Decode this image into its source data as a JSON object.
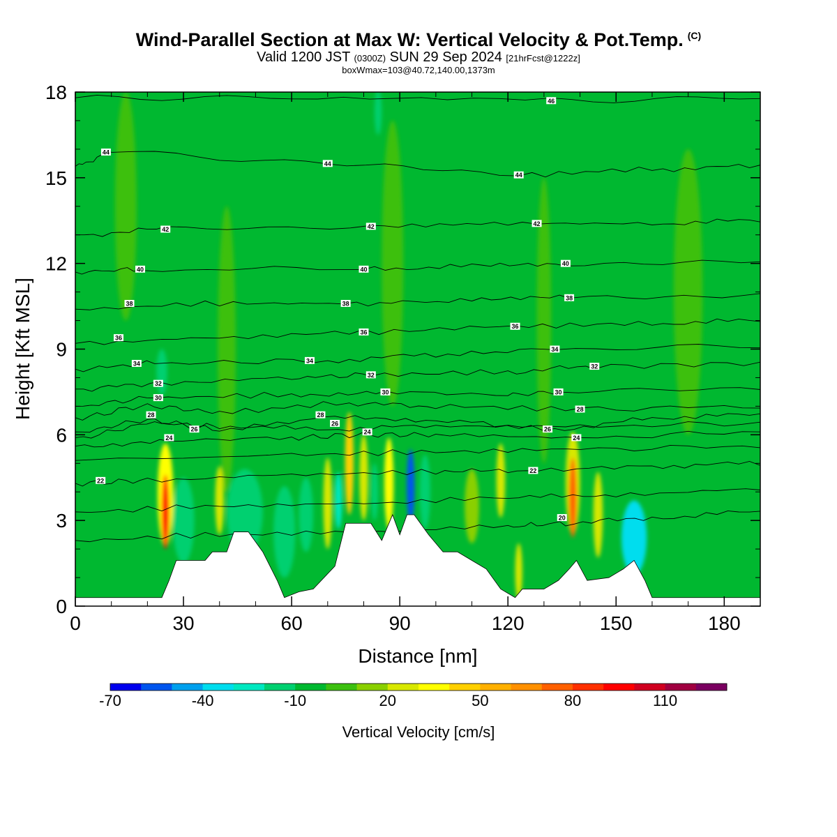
{
  "title": {
    "main": "Wind-Parallel Section at Max W: Vertical Velocity & Pot.Temp.",
    "copyright": "(C)",
    "valid_prefix": "Valid 1200 JST",
    "valid_utc": "(0300Z)",
    "valid_date": "SUN 29 Sep 2024",
    "forecast": "[21hrFcst@1222z]",
    "box_info": "boxWmax=103@40.72,140.00,1373m"
  },
  "chart_data": {
    "type": "heatmap",
    "xlabel": "Distance [nm]",
    "ylabel": "Height [Kft MSL]",
    "xlim": [
      0,
      190
    ],
    "ylim": [
      0,
      18
    ],
    "x_ticks": [
      0,
      30,
      60,
      90,
      120,
      150,
      180
    ],
    "y_ticks": [
      0,
      3,
      6,
      9,
      12,
      15,
      18
    ],
    "background_w": -5,
    "terrain_profile": [
      [
        0,
        0.3
      ],
      [
        24,
        0.3
      ],
      [
        26,
        0.9
      ],
      [
        28,
        1.6
      ],
      [
        36,
        1.6
      ],
      [
        38,
        1.9
      ],
      [
        42,
        1.9
      ],
      [
        44,
        2.6
      ],
      [
        48,
        2.6
      ],
      [
        52,
        1.9
      ],
      [
        56,
        0.9
      ],
      [
        58,
        0.3
      ],
      [
        62,
        0.5
      ],
      [
        66,
        0.6
      ],
      [
        72,
        1.4
      ],
      [
        75,
        2.9
      ],
      [
        82,
        2.9
      ],
      [
        85,
        2.3
      ],
      [
        88,
        3.2
      ],
      [
        90,
        2.5
      ],
      [
        92,
        3.2
      ],
      [
        94,
        3.2
      ],
      [
        98,
        2.5
      ],
      [
        102,
        1.9
      ],
      [
        106,
        1.9
      ],
      [
        110,
        1.6
      ],
      [
        114,
        1.3
      ],
      [
        118,
        0.6
      ],
      [
        122,
        0.3
      ],
      [
        124,
        0.6
      ],
      [
        130,
        0.6
      ],
      [
        134,
        0.9
      ],
      [
        137,
        1.3
      ],
      [
        139,
        1.6
      ],
      [
        142,
        0.9
      ],
      [
        148,
        1.0
      ],
      [
        152,
        1.3
      ],
      [
        155,
        1.6
      ],
      [
        158,
        0.9
      ],
      [
        160,
        0.3
      ],
      [
        190,
        0.3
      ]
    ],
    "w_cells": [
      {
        "x": 25,
        "y": 3.3,
        "sx": 1.0,
        "sy": 1.3,
        "w": 90
      },
      {
        "x": 25,
        "y": 3.9,
        "sx": 2.2,
        "sy": 1.8,
        "w": 30
      },
      {
        "x": 30,
        "y": 3.0,
        "sx": 3.0,
        "sy": 1.5,
        "w": -15
      },
      {
        "x": 40,
        "y": 3.7,
        "sx": 1.2,
        "sy": 1.2,
        "w": 25
      },
      {
        "x": 47,
        "y": 3.3,
        "sx": 5.0,
        "sy": 1.5,
        "w": -15
      },
      {
        "x": 58,
        "y": 2.6,
        "sx": 3.0,
        "sy": 1.6,
        "w": -18
      },
      {
        "x": 64,
        "y": 3.2,
        "sx": 2.0,
        "sy": 1.3,
        "w": -12
      },
      {
        "x": 70,
        "y": 3.6,
        "sx": 1.2,
        "sy": 1.6,
        "w": 25
      },
      {
        "x": 73,
        "y": 3.7,
        "sx": 1.0,
        "sy": 1.0,
        "w": -25
      },
      {
        "x": 76,
        "y": 5.0,
        "sx": 1.2,
        "sy": 1.8,
        "w": 40
      },
      {
        "x": 80,
        "y": 4.5,
        "sx": 1.2,
        "sy": 1.5,
        "w": 25
      },
      {
        "x": 83,
        "y": 4.0,
        "sx": 1.0,
        "sy": 1.0,
        "w": -20
      },
      {
        "x": 87,
        "y": 4.3,
        "sx": 1.3,
        "sy": 1.6,
        "w": 30
      },
      {
        "x": 93,
        "y": 4.2,
        "sx": 1.1,
        "sy": 1.3,
        "w": -55
      },
      {
        "x": 97,
        "y": 4.0,
        "sx": 1.5,
        "sy": 1.3,
        "w": -18
      },
      {
        "x": 110,
        "y": 3.5,
        "sx": 2.0,
        "sy": 1.3,
        "w": 15
      },
      {
        "x": 118,
        "y": 4.4,
        "sx": 1.2,
        "sy": 1.3,
        "w": 25
      },
      {
        "x": 123,
        "y": 1.2,
        "sx": 1.0,
        "sy": 1.0,
        "w": 25
      },
      {
        "x": 138,
        "y": 3.8,
        "sx": 1.0,
        "sy": 1.4,
        "w": 75
      },
      {
        "x": 138,
        "y": 4.3,
        "sx": 2.0,
        "sy": 1.8,
        "w": 25
      },
      {
        "x": 145,
        "y": 3.2,
        "sx": 1.3,
        "sy": 1.5,
        "w": 20
      },
      {
        "x": 155,
        "y": 2.4,
        "sx": 3.5,
        "sy": 1.3,
        "w": -40
      },
      {
        "x": 24,
        "y": 8.2,
        "sx": 1.5,
        "sy": 0.8,
        "w": -15
      },
      {
        "x": 42,
        "y": 9.0,
        "sx": 2.5,
        "sy": 5.0,
        "w": 5
      },
      {
        "x": 88,
        "y": 12.0,
        "sx": 3.0,
        "sy": 5.0,
        "w": 5
      },
      {
        "x": 130,
        "y": 10.0,
        "sx": 2.0,
        "sy": 5.0,
        "w": 5
      },
      {
        "x": 170,
        "y": 11.0,
        "sx": 4.0,
        "sy": 5.0,
        "w": 5
      },
      {
        "x": 14,
        "y": 14.0,
        "sx": 3.0,
        "sy": 4.0,
        "w": 5
      },
      {
        "x": 84,
        "y": 17.3,
        "sx": 1.0,
        "sy": 0.8,
        "w": -20
      }
    ],
    "theta_contours": [
      {
        "level": 20,
        "heights": [
          [
            0,
            2.3
          ],
          [
            40,
            2.5
          ],
          [
            80,
            2.6
          ],
          [
            120,
            2.8
          ],
          [
            136,
            2.9
          ],
          [
            160,
            3.1
          ],
          [
            190,
            3.3
          ]
        ]
      },
      {
        "level": 21,
        "heights": [
          [
            0,
            3.3
          ],
          [
            40,
            3.5
          ],
          [
            80,
            3.6
          ],
          [
            120,
            3.8
          ],
          [
            150,
            3.9
          ],
          [
            190,
            4.1
          ]
        ]
      },
      {
        "level": 22,
        "heights": [
          [
            0,
            4.3
          ],
          [
            20,
            4.4
          ],
          [
            60,
            4.6
          ],
          [
            100,
            4.7
          ],
          [
            125,
            4.75
          ],
          [
            160,
            4.9
          ],
          [
            190,
            5.0
          ]
        ]
      },
      {
        "level": 23,
        "heights": [
          [
            0,
            5.1
          ],
          [
            60,
            5.3
          ],
          [
            100,
            5.4
          ],
          [
            140,
            5.5
          ],
          [
            190,
            5.6
          ]
        ]
      },
      {
        "level": 24,
        "heights": [
          [
            0,
            5.6
          ],
          [
            26,
            5.8
          ],
          [
            60,
            5.9
          ],
          [
            80,
            6.0
          ],
          [
            100,
            6.0
          ],
          [
            140,
            5.9
          ],
          [
            190,
            6.1
          ]
        ]
      },
      {
        "level": 25,
        "heights": [
          [
            0,
            5.9
          ],
          [
            22,
            6.4
          ],
          [
            40,
            6.3
          ],
          [
            70,
            6.2
          ],
          [
            100,
            6.3
          ],
          [
            140,
            6.3
          ],
          [
            190,
            6.4
          ]
        ]
      },
      {
        "level": 26,
        "heights": [
          [
            0,
            6.1
          ],
          [
            20,
            6.5
          ],
          [
            40,
            6.2
          ],
          [
            72,
            6.6
          ],
          [
            100,
            6.5
          ],
          [
            133,
            6.2
          ],
          [
            160,
            6.6
          ],
          [
            190,
            6.7
          ]
        ]
      },
      {
        "level": 28,
        "heights": [
          [
            0,
            6.6
          ],
          [
            20,
            7.0
          ],
          [
            40,
            6.8
          ],
          [
            76,
            7.1
          ],
          [
            100,
            7.0
          ],
          [
            140,
            6.9
          ],
          [
            190,
            7.0
          ]
        ]
      },
      {
        "level": 30,
        "heights": [
          [
            0,
            7.0
          ],
          [
            22,
            7.3
          ],
          [
            60,
            7.4
          ],
          [
            86,
            7.5
          ],
          [
            120,
            7.4
          ],
          [
            134,
            7.5
          ],
          [
            190,
            7.6
          ]
        ]
      },
      {
        "level": 32,
        "heights": [
          [
            0,
            7.6
          ],
          [
            23,
            7.8
          ],
          [
            60,
            8.0
          ],
          [
            82,
            8.1
          ],
          [
            120,
            8.2
          ],
          [
            144,
            8.4
          ],
          [
            190,
            8.5
          ]
        ]
      },
      {
        "level": 34,
        "heights": [
          [
            0,
            8.3
          ],
          [
            22,
            8.5
          ],
          [
            70,
            8.6
          ],
          [
            100,
            8.8
          ],
          [
            133,
            9.0
          ],
          [
            190,
            9.1
          ]
        ]
      },
      {
        "level": 36,
        "heights": [
          [
            0,
            9.2
          ],
          [
            40,
            9.4
          ],
          [
            80,
            9.6
          ],
          [
            122,
            9.8
          ],
          [
            160,
            9.9
          ],
          [
            190,
            10.0
          ]
        ]
      },
      {
        "level": 38,
        "heights": [
          [
            0,
            10.4
          ],
          [
            40,
            10.6
          ],
          [
            78,
            10.6
          ],
          [
            110,
            10.7
          ],
          [
            137,
            10.8
          ],
          [
            190,
            10.9
          ]
        ]
      },
      {
        "level": 40,
        "heights": [
          [
            0,
            11.7
          ],
          [
            18,
            11.8
          ],
          [
            80,
            11.8
          ],
          [
            110,
            11.9
          ],
          [
            136,
            12.0
          ],
          [
            190,
            12.1
          ]
        ]
      },
      {
        "level": 42,
        "heights": [
          [
            0,
            13.0
          ],
          [
            25,
            13.2
          ],
          [
            82,
            13.3
          ],
          [
            120,
            13.4
          ],
          [
            160,
            13.4
          ],
          [
            190,
            13.5
          ]
        ]
      },
      {
        "level": 44,
        "heights": [
          [
            0,
            15.4
          ],
          [
            10,
            15.9
          ],
          [
            70,
            15.5
          ],
          [
            123,
            15.1
          ],
          [
            160,
            15.3
          ],
          [
            190,
            15.4
          ]
        ]
      },
      {
        "level": 46,
        "heights": [
          [
            0,
            17.8
          ],
          [
            60,
            17.8
          ],
          [
            132,
            17.7
          ],
          [
            190,
            17.8
          ]
        ]
      }
    ],
    "contour_labels": [
      {
        "text": "44",
        "x": 8.5,
        "y": 15.9
      },
      {
        "text": "44",
        "x": 70,
        "y": 15.5
      },
      {
        "text": "44",
        "x": 123,
        "y": 15.1
      },
      {
        "text": "46",
        "x": 132,
        "y": 17.7
      },
      {
        "text": "42",
        "x": 25,
        "y": 13.2
      },
      {
        "text": "42",
        "x": 82,
        "y": 13.3
      },
      {
        "text": "42",
        "x": 128,
        "y": 13.4
      },
      {
        "text": "40",
        "x": 18,
        "y": 11.8
      },
      {
        "text": "40",
        "x": 80,
        "y": 11.8
      },
      {
        "text": "40",
        "x": 136,
        "y": 12.0
      },
      {
        "text": "38",
        "x": 15,
        "y": 10.6
      },
      {
        "text": "38",
        "x": 75,
        "y": 10.6
      },
      {
        "text": "38",
        "x": 137,
        "y": 10.8
      },
      {
        "text": "36",
        "x": 12,
        "y": 9.4
      },
      {
        "text": "36",
        "x": 80,
        "y": 9.6
      },
      {
        "text": "36",
        "x": 122,
        "y": 9.8
      },
      {
        "text": "34",
        "x": 17,
        "y": 8.5
      },
      {
        "text": "34",
        "x": 65,
        "y": 8.6
      },
      {
        "text": "34",
        "x": 133,
        "y": 9.0
      },
      {
        "text": "32",
        "x": 23,
        "y": 7.8
      },
      {
        "text": "32",
        "x": 82,
        "y": 8.1
      },
      {
        "text": "32",
        "x": 144,
        "y": 8.4
      },
      {
        "text": "30",
        "x": 23,
        "y": 7.3
      },
      {
        "text": "30",
        "x": 86,
        "y": 7.5
      },
      {
        "text": "30",
        "x": 134,
        "y": 7.5
      },
      {
        "text": "28",
        "x": 21,
        "y": 6.7
      },
      {
        "text": "28",
        "x": 68,
        "y": 6.7
      },
      {
        "text": "28",
        "x": 140,
        "y": 6.9
      },
      {
        "text": "26",
        "x": 33,
        "y": 6.2
      },
      {
        "text": "26",
        "x": 72,
        "y": 6.4
      },
      {
        "text": "26",
        "x": 131,
        "y": 6.2
      },
      {
        "text": "24",
        "x": 26,
        "y": 5.9
      },
      {
        "text": "24",
        "x": 81,
        "y": 6.1
      },
      {
        "text": "24",
        "x": 139,
        "y": 5.9
      },
      {
        "text": "22",
        "x": 7,
        "y": 4.4
      },
      {
        "text": "22",
        "x": 127,
        "y": 4.75
      },
      {
        "text": "20",
        "x": 135,
        "y": 3.1
      }
    ]
  },
  "colorbar": {
    "label": "Vertical Velocity [cm/s]",
    "min": -70,
    "step": 10,
    "tick_labels": [
      "-70",
      "-40",
      "-10",
      "20",
      "50",
      "80",
      "110"
    ],
    "colors": [
      "#0000ee",
      "#0055ee",
      "#00a0ee",
      "#00ddee",
      "#00e8c0",
      "#00d070",
      "#00b830",
      "#3cc010",
      "#8ad000",
      "#d8e800",
      "#ffff00",
      "#ffd000",
      "#ffb000",
      "#ff9000",
      "#ff6000",
      "#ff3000",
      "#ff0000",
      "#d00020",
      "#a00040",
      "#7a0060"
    ]
  }
}
